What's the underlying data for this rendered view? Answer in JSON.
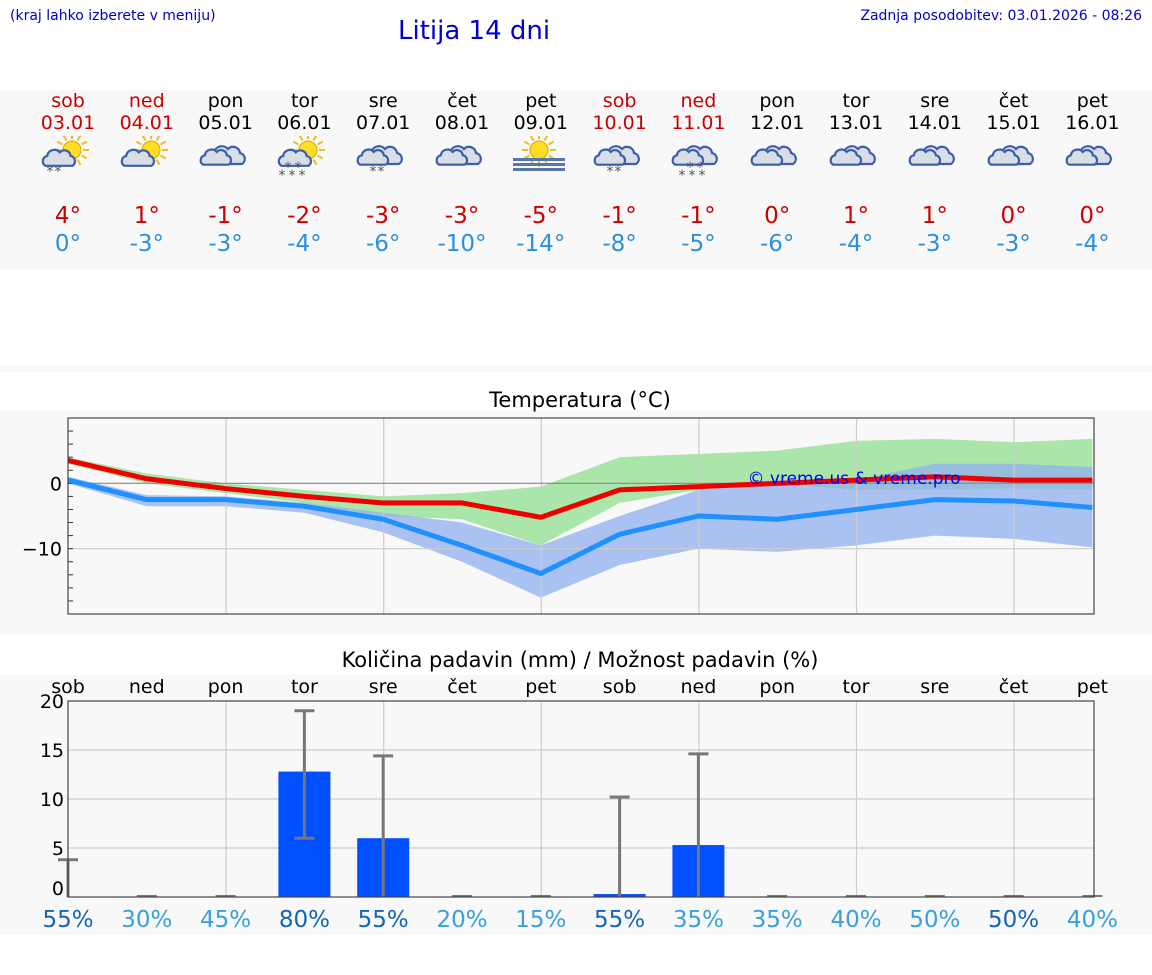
{
  "header": {
    "hint": "(kraj lahko izberete v meniju)",
    "title": "Litija 14 dni",
    "updated": "Zadnja posodobitev: 03.01.2026 - 08:26"
  },
  "colors": {
    "weekend": "#cc0000",
    "weekday": "#000000",
    "tmax": "#cc0000",
    "tmin": "#2b8fe0",
    "bar": "#0050ff"
  },
  "days": [
    {
      "name": "sob",
      "date": "03.01",
      "tmax": "4°",
      "tmin": "0°",
      "weekend": true,
      "icon": "sun-cloud-light-snow-icon"
    },
    {
      "name": "ned",
      "date": "04.01",
      "tmax": "1°",
      "tmin": "-3°",
      "weekend": true,
      "icon": "sun-cloud-icon"
    },
    {
      "name": "pon",
      "date": "05.01",
      "tmax": "-1°",
      "tmin": "-3°",
      "weekend": false,
      "icon": "cloudy-icon"
    },
    {
      "name": "tor",
      "date": "06.01",
      "tmax": "-2°",
      "tmin": "-4°",
      "weekend": false,
      "icon": "sun-cloud-snow-icon"
    },
    {
      "name": "sre",
      "date": "07.01",
      "tmax": "-3°",
      "tmin": "-6°",
      "weekend": false,
      "icon": "cloud-light-snow-icon"
    },
    {
      "name": "čet",
      "date": "08.01",
      "tmax": "-3°",
      "tmin": "-10°",
      "weekend": false,
      "icon": "cloudy-icon"
    },
    {
      "name": "pet",
      "date": "09.01",
      "tmax": "-5°",
      "tmin": "-14°",
      "weekend": false,
      "icon": "sun-fog-icon"
    },
    {
      "name": "sob",
      "date": "10.01",
      "tmax": "-1°",
      "tmin": "-8°",
      "weekend": true,
      "icon": "cloud-light-snow-icon"
    },
    {
      "name": "ned",
      "date": "11.01",
      "tmax": "-1°",
      "tmin": "-5°",
      "weekend": true,
      "icon": "cloud-snow-icon"
    },
    {
      "name": "pon",
      "date": "12.01",
      "tmax": "0°",
      "tmin": "-6°",
      "weekend": false,
      "icon": "cloudy-icon"
    },
    {
      "name": "tor",
      "date": "13.01",
      "tmax": "1°",
      "tmin": "-4°",
      "weekend": false,
      "icon": "cloudy-icon"
    },
    {
      "name": "sre",
      "date": "14.01",
      "tmax": "1°",
      "tmin": "-3°",
      "weekend": false,
      "icon": "cloudy-icon"
    },
    {
      "name": "čet",
      "date": "15.01",
      "tmax": "0°",
      "tmin": "-3°",
      "weekend": false,
      "icon": "cloudy-icon"
    },
    {
      "name": "pet",
      "date": "16.01",
      "tmax": "0°",
      "tmin": "-4°",
      "weekend": false,
      "icon": "cloudy-icon"
    }
  ],
  "chart_data": [
    {
      "type": "line",
      "title": "Temperatura (°C)",
      "x": [
        0,
        1,
        2,
        3,
        4,
        5,
        6,
        7,
        8,
        9,
        10,
        11,
        12,
        13
      ],
      "yticks": [
        0,
        -10
      ],
      "ytick_labels": [
        "0",
        "−10"
      ],
      "ylim": [
        -20,
        10
      ],
      "watermark": "© vreme.us & vreme.pro",
      "series": [
        {
          "name": "max",
          "color": "#ee0000",
          "values": [
            3.5,
            0.7,
            -0.8,
            -2,
            -3,
            -3,
            -5.2,
            -1,
            -0.5,
            0,
            0.5,
            1,
            0.5,
            0.5
          ]
        },
        {
          "name": "min",
          "color": "#2090ff",
          "values": [
            0.5,
            -2.5,
            -2.5,
            -3.5,
            -5.5,
            -9.5,
            -13.8,
            -7.8,
            -5,
            -5.5,
            -4,
            -2.5,
            -2.7,
            -3.7
          ]
        }
      ],
      "bands": [
        {
          "name": "max-range",
          "color": "#90e090",
          "upper": [
            4,
            1.5,
            0,
            -1,
            -2,
            -1.5,
            -0.5,
            4,
            4.5,
            5,
            6.5,
            6.8,
            6.3,
            6.8
          ],
          "lower": [
            3,
            0,
            -1.5,
            -3,
            -5,
            -5.5,
            -9.5,
            -3,
            -1,
            0,
            -1,
            -1,
            -0.8,
            -1
          ]
        },
        {
          "name": "min-range",
          "color": "#90b0f0",
          "upper": [
            1,
            -1.8,
            -2,
            -3,
            -4.5,
            -6,
            -9.5,
            -5,
            -1,
            0,
            0.5,
            3,
            3,
            2.5
          ],
          "lower": [
            0,
            -3.5,
            -3.5,
            -4.5,
            -7.5,
            -12,
            -17.5,
            -12.5,
            -10,
            -10.5,
            -9.5,
            -8,
            -8.5,
            -9.8
          ]
        }
      ]
    },
    {
      "type": "bar",
      "title": "Količina padavin (mm) / Možnost padavin (%)",
      "categories": [
        "sob",
        "ned",
        "pon",
        "tor",
        "sre",
        "čet",
        "pet",
        "sob",
        "ned",
        "pon",
        "tor",
        "sre",
        "čet",
        "pet"
      ],
      "values": [
        0,
        0,
        0,
        12.8,
        6,
        0,
        0,
        0.3,
        5.3,
        0,
        0,
        0,
        0,
        0
      ],
      "err_low": [
        0,
        0,
        0,
        6,
        0,
        0,
        0,
        0,
        0,
        0,
        0,
        0,
        0,
        0
      ],
      "err_high": [
        3.8,
        0,
        0,
        19,
        14.4,
        0,
        0,
        10.2,
        14.6,
        0,
        0,
        0,
        0,
        0
      ],
      "probabilities": [
        "55%",
        "30%",
        "45%",
        "80%",
        "55%",
        "20%",
        "15%",
        "55%",
        "35%",
        "35%",
        "40%",
        "50%",
        "50%",
        "40%"
      ],
      "prob_colors": [
        "#1565b5",
        "#3aa0d8",
        "#3aa0d8",
        "#1565b5",
        "#1565b5",
        "#3aa0d8",
        "#3aa0d8",
        "#1565b5",
        "#3aa0d8",
        "#3aa0d8",
        "#3aa0d8",
        "#3aa0d8",
        "#1565b5",
        "#3aa0d8"
      ],
      "yticks": [
        0,
        5,
        10,
        15,
        20
      ],
      "ylim": [
        0,
        20
      ]
    }
  ]
}
